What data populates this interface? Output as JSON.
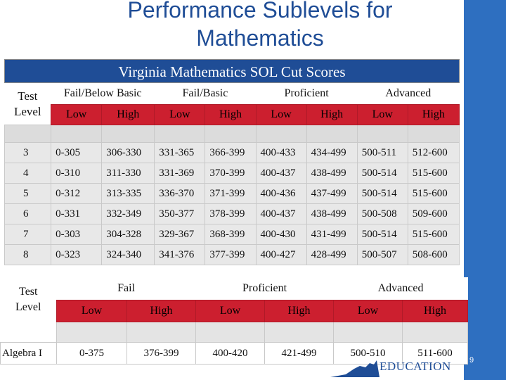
{
  "slide": {
    "title_line1": "Performance Sublevels for",
    "title_line2": "Mathematics",
    "page_number": "9",
    "logo_text": "EDUCATION"
  },
  "table1": {
    "banner": "Virginia Mathematics SOL Cut Scores",
    "level_label_line1": "Test",
    "level_label_line2": "Level",
    "groups": [
      "Fail/Below Basic",
      "Fail/Basic",
      "Proficient",
      "Advanced"
    ],
    "subheaders": [
      "Low",
      "High",
      "Low",
      "High",
      "Low",
      "High",
      "Low",
      "High"
    ],
    "rows": [
      {
        "level": "3",
        "values": [
          "0-305",
          "306-330",
          "331-365",
          "366-399",
          "400-433",
          "434-499",
          "500-511",
          "512-600"
        ]
      },
      {
        "level": "4",
        "values": [
          "0-310",
          "311-330",
          "331-369",
          "370-399",
          "400-437",
          "438-499",
          "500-514",
          "515-600"
        ]
      },
      {
        "level": "5",
        "values": [
          "0-312",
          "313-335",
          "336-370",
          "371-399",
          "400-436",
          "437-499",
          "500-514",
          "515-600"
        ]
      },
      {
        "level": "6",
        "values": [
          "0-331",
          "332-349",
          "350-377",
          "378-399",
          "400-437",
          "438-499",
          "500-508",
          "509-600"
        ]
      },
      {
        "level": "7",
        "values": [
          "0-303",
          "304-328",
          "329-367",
          "368-399",
          "400-430",
          "431-499",
          "500-514",
          "515-600"
        ]
      },
      {
        "level": "8",
        "values": [
          "0-323",
          "324-340",
          "341-376",
          "377-399",
          "400-427",
          "428-499",
          "500-507",
          "508-600"
        ]
      }
    ]
  },
  "table2": {
    "level_label_line1": "Test",
    "level_label_line2": "Level",
    "groups": [
      "Fail",
      "Proficient",
      "Advanced"
    ],
    "subheaders": [
      "Low",
      "High",
      "Low",
      "High",
      "Low",
      "High"
    ],
    "rows": [
      {
        "level": "Algebra I",
        "values": [
          "0-375",
          "376-399",
          "400-420",
          "421-499",
          "500-510",
          "511-600"
        ]
      }
    ]
  },
  "colors": {
    "title": "#1f4d96",
    "banner": "#1f4d96",
    "subheader_red": "#cc1f2f",
    "side_bar": "#2e6fc0"
  }
}
